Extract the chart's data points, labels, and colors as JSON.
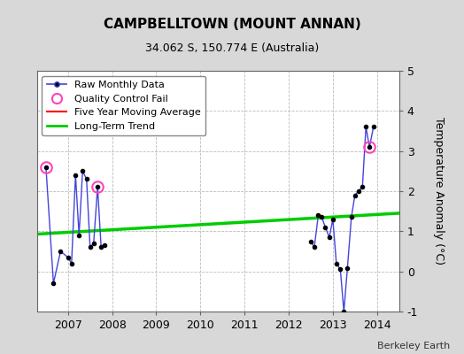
{
  "title": "CAMPBELLTOWN (MOUNT ANNAN)",
  "subtitle": "34.062 S, 150.774 E (Australia)",
  "ylabel": "Temperature Anomaly (°C)",
  "attribution": "Berkeley Earth",
  "ylim": [
    -1,
    5
  ],
  "yticks": [
    -1,
    0,
    1,
    2,
    3,
    4,
    5
  ],
  "xlim": [
    2006.3,
    2014.5
  ],
  "xticks": [
    2007,
    2008,
    2009,
    2010,
    2011,
    2012,
    2013,
    2014
  ],
  "bg_color": "#d8d8d8",
  "plot_bg_color": "#ffffff",
  "raw_data": [
    [
      2006.5,
      2.6
    ],
    [
      2006.67,
      -0.3
    ],
    [
      2006.83,
      0.5
    ],
    [
      2007.0,
      0.35
    ],
    [
      2007.08,
      0.2
    ],
    [
      2007.17,
      2.4
    ],
    [
      2007.25,
      0.9
    ],
    [
      2007.33,
      2.5
    ],
    [
      2007.42,
      2.3
    ],
    [
      2007.5,
      0.6
    ],
    [
      2007.58,
      0.7
    ],
    [
      2007.67,
      2.1
    ],
    [
      2007.75,
      0.6
    ],
    [
      2007.83,
      0.65
    ],
    [
      2012.5,
      0.75
    ],
    [
      2012.58,
      0.6
    ],
    [
      2012.67,
      1.4
    ],
    [
      2012.75,
      1.35
    ],
    [
      2012.83,
      1.1
    ],
    [
      2012.92,
      0.85
    ],
    [
      2013.0,
      1.3
    ],
    [
      2013.08,
      0.2
    ],
    [
      2013.17,
      0.05
    ],
    [
      2013.25,
      -1.0
    ],
    [
      2013.33,
      0.08
    ],
    [
      2013.42,
      1.35
    ],
    [
      2013.5,
      1.9
    ],
    [
      2013.58,
      2.0
    ],
    [
      2013.67,
      2.1
    ],
    [
      2013.75,
      3.6
    ],
    [
      2013.83,
      3.1
    ],
    [
      2013.92,
      3.6
    ]
  ],
  "qc_fail_points": [
    [
      2006.5,
      2.6
    ],
    [
      2007.67,
      2.1
    ],
    [
      2013.83,
      3.1
    ]
  ],
  "trend_x": [
    2006.3,
    2014.5
  ],
  "trend_y": [
    0.93,
    1.45
  ],
  "line_color": "#4444dd",
  "dot_color": "#000000",
  "qc_color": "#ff44bb",
  "trend_color": "#00cc00",
  "moving_avg_color": "#ff0000",
  "grid_color": "#bbbbbb"
}
